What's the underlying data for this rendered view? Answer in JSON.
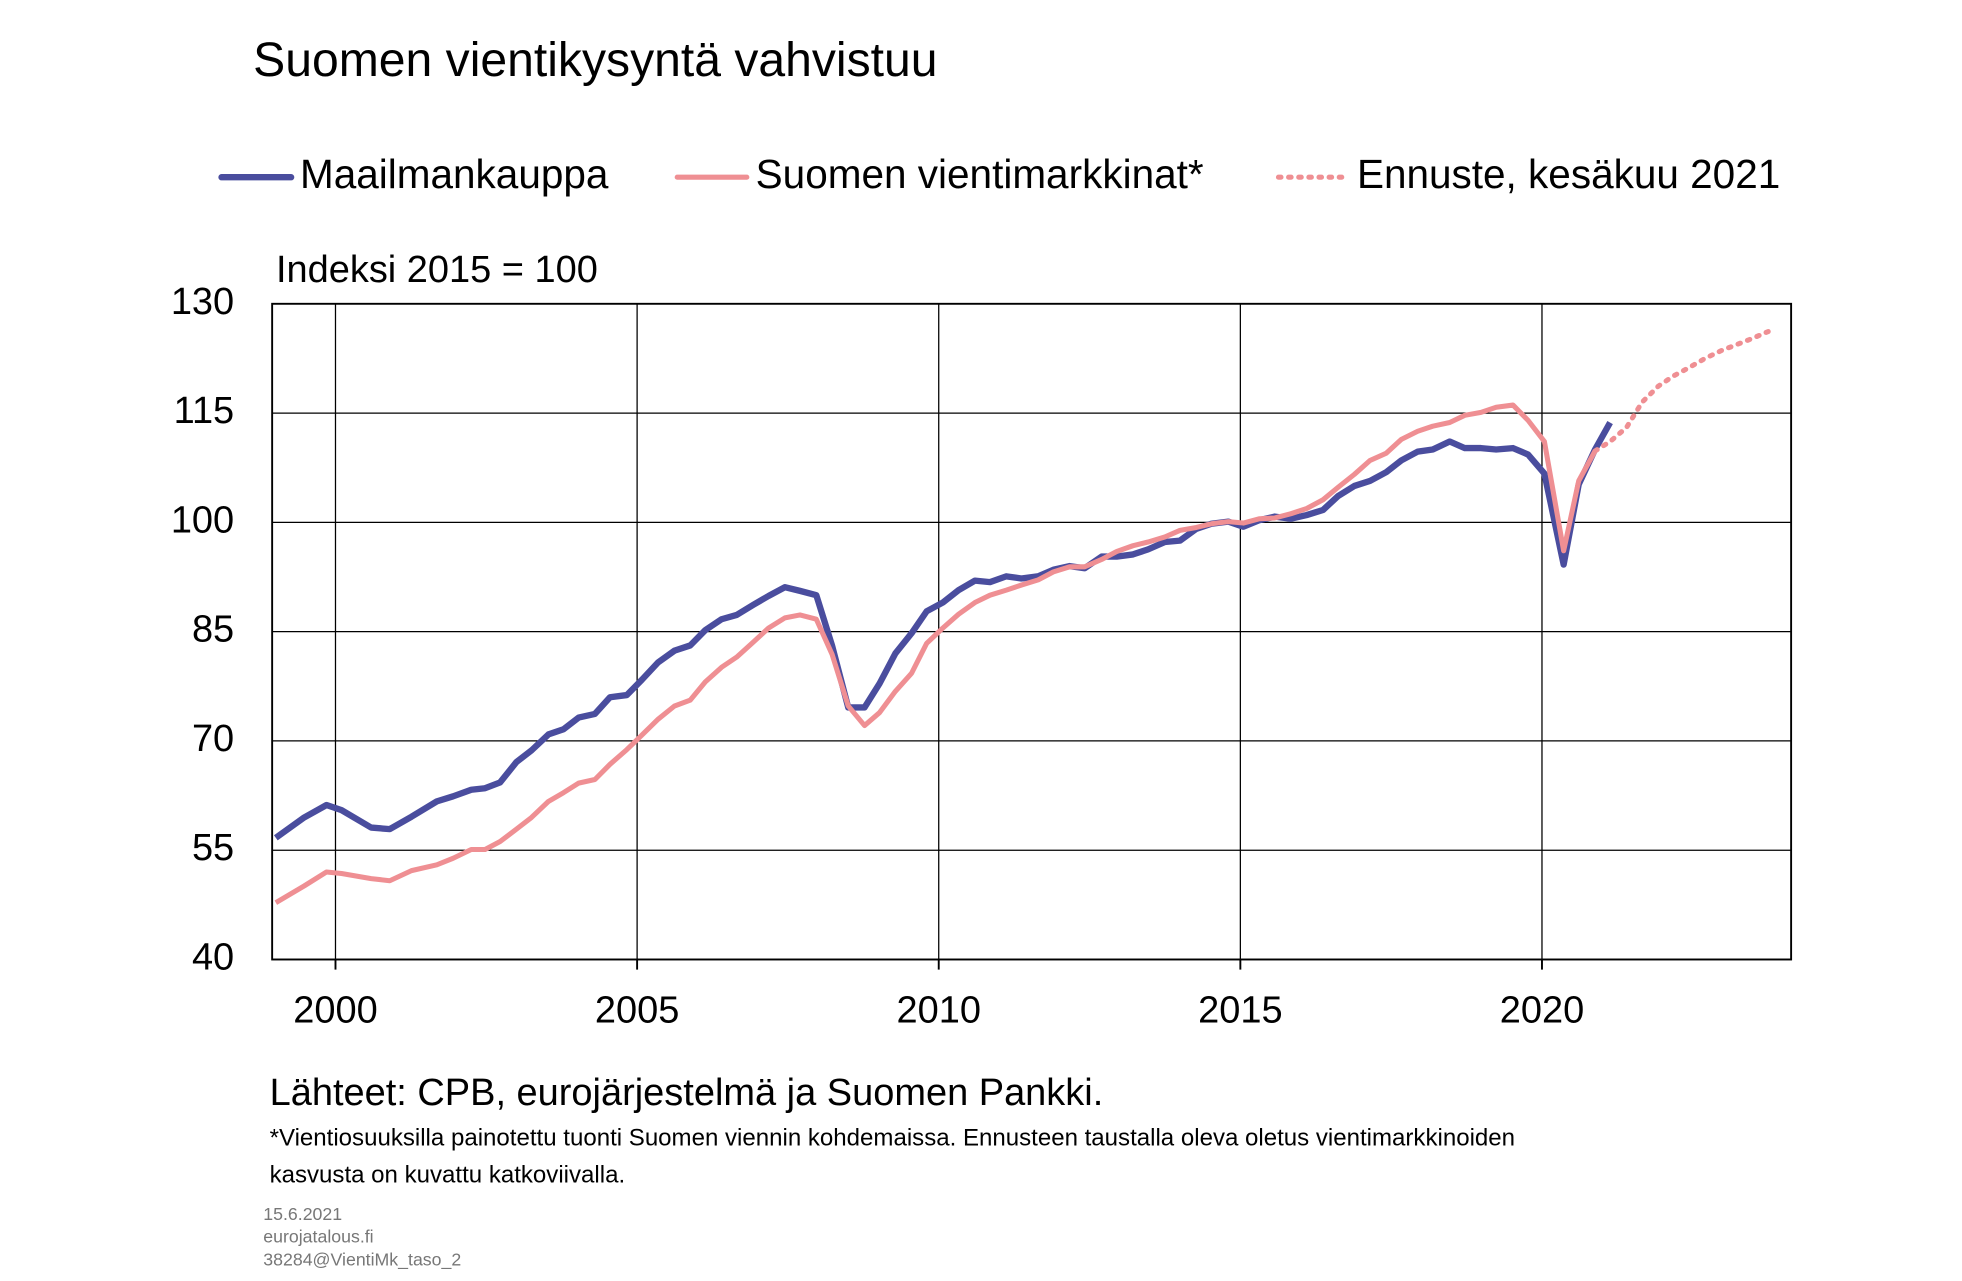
{
  "chart_data": {
    "type": "line",
    "title": "Suomen vientikysyntä vahvistuu",
    "y_label": "Indeksi 2015 = 100",
    "source": "Lähteet: CPB, eurojärjestelmä ja Suomen Pankki.",
    "footnote": [
      "*Vientiosuuksilla painotettu tuonti Suomen viennin kohdemaissa. Ennusteen taustalla oleva oletus vientimarkkinoiden",
      "kasvusta on kuvattu katkoviivalla."
    ],
    "footer": [
      "15.6.2021",
      "eurojatalous.fi",
      "38284@VientiMk_taso_2"
    ],
    "xlim": [
      1998.95,
      2024.13
    ],
    "xticks": [
      2000,
      2005,
      2010,
      2015,
      2020
    ],
    "ylim": [
      40,
      130
    ],
    "yticks": [
      40,
      55,
      70,
      85,
      100,
      115,
      130
    ],
    "grid": true,
    "series": [
      {
        "name": "Maailmankauppa",
        "color": "#4a4d9e",
        "style": "solid",
        "x": [
          1999.01,
          1999.48,
          1999.85,
          2000.1,
          2000.59,
          2000.9,
          2001.26,
          2001.68,
          2001.95,
          2002.25,
          2002.48,
          2002.73,
          2003.0,
          2003.25,
          2003.53,
          2003.78,
          2004.03,
          2004.3,
          2004.55,
          2004.83,
          2005.08,
          2005.35,
          2005.62,
          2005.88,
          2006.13,
          2006.4,
          2006.65,
          2006.93,
          2007.18,
          2007.45,
          2007.7,
          2007.97,
          2008.23,
          2008.5,
          2008.77,
          2009.02,
          2009.28,
          2009.55,
          2009.8,
          2010.07,
          2010.33,
          2010.6,
          2010.85,
          2011.12,
          2011.37,
          2011.65,
          2011.9,
          2012.17,
          2012.42,
          2012.7,
          2012.95,
          2013.22,
          2013.47,
          2013.75,
          2014.0,
          2014.27,
          2014.52,
          2014.8,
          2015.05,
          2015.32,
          2015.57,
          2015.84,
          2016.1,
          2016.37,
          2016.62,
          2016.89,
          2017.15,
          2017.42,
          2017.67,
          2017.94,
          2018.19,
          2018.47,
          2018.72,
          2018.99,
          2019.24,
          2019.52,
          2019.77,
          2020.04,
          2020.36,
          2020.61,
          2020.88,
          2021.13
        ],
        "values": [
          56.7,
          59.5,
          61.2,
          60.5,
          58.1,
          57.9,
          59.6,
          61.7,
          62.4,
          63.3,
          63.5,
          64.3,
          67.1,
          68.7,
          70.9,
          71.6,
          73.2,
          73.7,
          76.0,
          76.3,
          78.4,
          80.8,
          82.4,
          83.1,
          85.2,
          86.7,
          87.3,
          88.7,
          89.9,
          91.1,
          90.6,
          90.0,
          83.1,
          74.6,
          74.6,
          77.9,
          82.0,
          84.8,
          87.8,
          89.0,
          90.7,
          92.0,
          91.8,
          92.6,
          92.3,
          92.6,
          93.5,
          94.0,
          93.7,
          95.3,
          95.3,
          95.6,
          96.3,
          97.3,
          97.5,
          99.1,
          99.8,
          100.1,
          99.4,
          100.3,
          100.8,
          100.5,
          101.0,
          101.7,
          103.6,
          105.0,
          105.7,
          106.9,
          108.5,
          109.7,
          110.0,
          111.1,
          110.2,
          110.2,
          110.0,
          110.2,
          109.3,
          106.7,
          94.2,
          105.2,
          110.0,
          113.7
        ]
      },
      {
        "name": "Suomen vientimarkkinat*",
        "color": "#ef8f93",
        "style": "solid",
        "x": [
          1999.01,
          1999.48,
          1999.85,
          2000.1,
          2000.59,
          2000.9,
          2001.26,
          2001.68,
          2001.95,
          2002.25,
          2002.48,
          2002.73,
          2003.0,
          2003.25,
          2003.53,
          2003.78,
          2004.03,
          2004.3,
          2004.55,
          2004.83,
          2005.08,
          2005.35,
          2005.62,
          2005.88,
          2006.13,
          2006.4,
          2006.65,
          2006.93,
          2007.18,
          2007.45,
          2007.7,
          2007.97,
          2008.23,
          2008.5,
          2008.77,
          2009.02,
          2009.28,
          2009.55,
          2009.8,
          2010.07,
          2010.33,
          2010.6,
          2010.85,
          2011.12,
          2011.37,
          2011.65,
          2011.9,
          2012.17,
          2012.42,
          2012.7,
          2012.95,
          2013.22,
          2013.47,
          2013.75,
          2014.0,
          2014.27,
          2014.52,
          2014.8,
          2015.05,
          2015.32,
          2015.57,
          2015.84,
          2016.1,
          2016.37,
          2016.62,
          2016.89,
          2017.15,
          2017.42,
          2017.67,
          2017.94,
          2018.19,
          2018.47,
          2018.72,
          2018.99,
          2019.24,
          2019.52,
          2019.77,
          2020.04,
          2020.36,
          2020.61,
          2020.88
        ],
        "values": [
          47.8,
          50.1,
          52.0,
          51.8,
          51.1,
          50.8,
          52.2,
          53.0,
          53.9,
          55.1,
          55.1,
          56.2,
          57.9,
          59.5,
          61.7,
          62.9,
          64.2,
          64.7,
          66.8,
          68.8,
          70.8,
          73.0,
          74.8,
          75.6,
          78.1,
          80.1,
          81.5,
          83.6,
          85.5,
          86.9,
          87.3,
          86.7,
          81.9,
          74.8,
          72.1,
          73.9,
          76.8,
          79.3,
          83.4,
          85.5,
          87.4,
          89.0,
          90.0,
          90.7,
          91.4,
          92.1,
          93.2,
          93.9,
          93.9,
          94.9,
          96.0,
          96.8,
          97.3,
          98.0,
          98.9,
          99.3,
          99.8,
          100.1,
          99.9,
          100.5,
          100.6,
          101.2,
          101.9,
          103.1,
          104.8,
          106.6,
          108.5,
          109.5,
          111.4,
          112.5,
          113.2,
          113.7,
          114.7,
          115.1,
          115.8,
          116.1,
          114.0,
          111.1,
          96.1,
          105.7,
          109.8
        ]
      },
      {
        "name": "Ennuste, kesäkuu 2021",
        "color": "#ef8f93",
        "style": "dotted",
        "x": [
          2020.88,
          2021.13,
          2021.4,
          2021.66,
          2021.93,
          2022.18,
          2022.45,
          2022.7,
          2022.98,
          2023.23,
          2023.5,
          2023.75
        ],
        "values": [
          109.8,
          111.1,
          113.0,
          116.5,
          118.7,
          120.1,
          121.3,
          122.5,
          123.6,
          124.4,
          125.3,
          126.2
        ]
      }
    ]
  }
}
